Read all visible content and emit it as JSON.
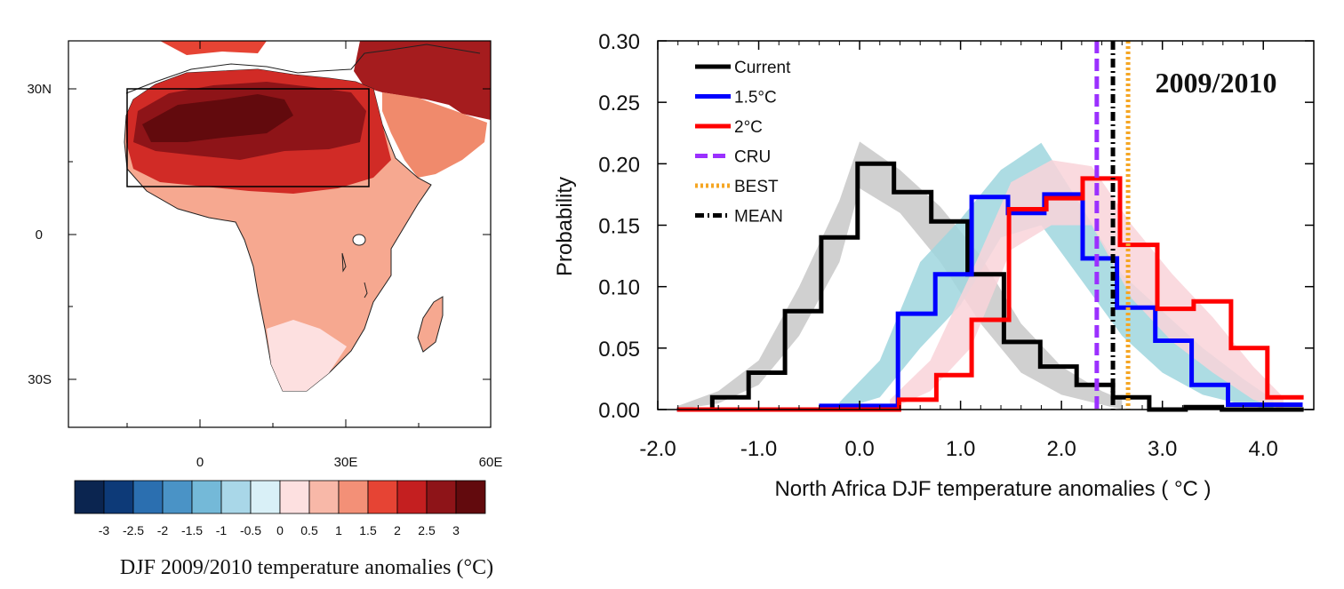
{
  "map_panel": {
    "lon_ticks": [
      "0",
      "30E",
      "60E"
    ],
    "lat_ticks": [
      "30N",
      "0",
      "30S"
    ],
    "region_box": "North Africa",
    "colorbar": {
      "labels": [
        "-3",
        "-2.5",
        "-2",
        "-1.5",
        "-1",
        "-0.5",
        "0",
        "0.5",
        "1",
        "1.5",
        "2",
        "2.5",
        "3"
      ],
      "colors": [
        "#0b2550",
        "#0d3a78",
        "#2b6fb0",
        "#4a93c6",
        "#74b9d8",
        "#a9d7e8",
        "#d9f0f7",
        "#fde0e0",
        "#f8b8a8",
        "#f39077",
        "#e64434",
        "#c41f20",
        "#8e1418",
        "#620a0d"
      ]
    },
    "caption": "DJF 2009/2010 temperature anomalies (°C)"
  },
  "chart_data": {
    "type": "line",
    "subtype": "step histogram with shaded spread",
    "year_label": "2009/2010",
    "xlabel": "North Africa DJF temperature anomalies ( °C )",
    "ylabel": "Probability",
    "xlim": [
      -2.0,
      4.5
    ],
    "ylim": [
      0.0,
      0.3
    ],
    "x_ticks": [
      "-2.0",
      "-1.0",
      "0.0",
      "1.0",
      "2.0",
      "3.0",
      "4.0"
    ],
    "y_ticks": [
      "0.00",
      "0.05",
      "0.10",
      "0.15",
      "0.20",
      "0.25",
      "0.30"
    ],
    "legend_position": "top-left",
    "series": [
      {
        "name": "Current",
        "color": "#000000",
        "edges": [
          -1.81,
          -1.46,
          -1.1,
          -0.74,
          -0.38,
          -0.02,
          0.34,
          0.71,
          1.07,
          1.43,
          1.79,
          2.15,
          2.51,
          2.87,
          3.23,
          3.59,
          4.4
        ],
        "values": [
          0.0,
          0.01,
          0.03,
          0.08,
          0.14,
          0.2,
          0.177,
          0.153,
          0.11,
          0.055,
          0.035,
          0.02,
          0.01,
          0.0,
          0.002,
          0.0
        ]
      },
      {
        "name": "1.5°C",
        "color": "#0000ff",
        "edges": [
          -1.81,
          -0.38,
          0.38,
          0.75,
          1.11,
          1.47,
          1.83,
          2.21,
          2.55,
          2.93,
          3.29,
          3.65,
          4.39
        ],
        "values": [
          0.0,
          0.003,
          0.078,
          0.11,
          0.173,
          0.16,
          0.175,
          0.123,
          0.083,
          0.056,
          0.02,
          0.004
        ]
      },
      {
        "name": "2°C",
        "color": "#ff0000",
        "edges": [
          -1.81,
          0.39,
          0.76,
          1.11,
          1.48,
          1.85,
          2.21,
          2.58,
          2.95,
          3.31,
          3.68,
          4.04,
          4.4
        ],
        "values": [
          0.0,
          0.008,
          0.028,
          0.073,
          0.163,
          0.172,
          0.188,
          0.134,
          0.082,
          0.088,
          0.05,
          0.01
        ]
      }
    ],
    "vertical_lines": [
      {
        "name": "CRU",
        "x": 2.35,
        "color": "#9b30ff",
        "style": "dashed"
      },
      {
        "name": "BEST",
        "x": 2.66,
        "color": "#f5a623",
        "style": "dotted"
      },
      {
        "name": "MEAN",
        "x": 2.51,
        "color": "#000000",
        "style": "dashdot"
      }
    ],
    "spread_bands": [
      {
        "series": "Current",
        "color": "#c8c8c8",
        "x": [
          -1.8,
          -1.4,
          -1.0,
          -0.6,
          -0.2,
          0.0,
          0.4,
          0.8,
          1.2,
          1.6,
          2.0,
          2.4,
          2.6
        ],
        "upper": [
          0.003,
          0.015,
          0.04,
          0.1,
          0.17,
          0.218,
          0.195,
          0.165,
          0.125,
          0.07,
          0.035,
          0.015,
          0.008
        ],
        "lower": [
          0.0,
          0.005,
          0.02,
          0.06,
          0.12,
          0.18,
          0.16,
          0.12,
          0.07,
          0.03,
          0.012,
          0.004,
          0.0
        ]
      },
      {
        "series": "1.5°C",
        "color": "#9fd6de",
        "x": [
          -0.2,
          0.2,
          0.6,
          1.0,
          1.4,
          1.8,
          2.2,
          2.6,
          3.0,
          3.4,
          3.8,
          4.1
        ],
        "upper": [
          0.006,
          0.04,
          0.12,
          0.155,
          0.195,
          0.217,
          0.165,
          0.11,
          0.08,
          0.05,
          0.025,
          0.008
        ],
        "lower": [
          0.0,
          0.01,
          0.05,
          0.085,
          0.14,
          0.15,
          0.105,
          0.06,
          0.03,
          0.012,
          0.004,
          0.0
        ]
      },
      {
        "series": "2°C",
        "color": "#f9d3d9",
        "x": [
          0.3,
          0.7,
          1.1,
          1.5,
          1.9,
          2.3,
          2.7,
          3.1,
          3.5,
          3.9,
          4.2
        ],
        "upper": [
          0.008,
          0.04,
          0.11,
          0.185,
          0.203,
          0.198,
          0.15,
          0.11,
          0.075,
          0.035,
          0.01
        ],
        "lower": [
          0.0,
          0.015,
          0.05,
          0.13,
          0.15,
          0.15,
          0.09,
          0.055,
          0.03,
          0.008,
          0.0
        ]
      }
    ]
  }
}
